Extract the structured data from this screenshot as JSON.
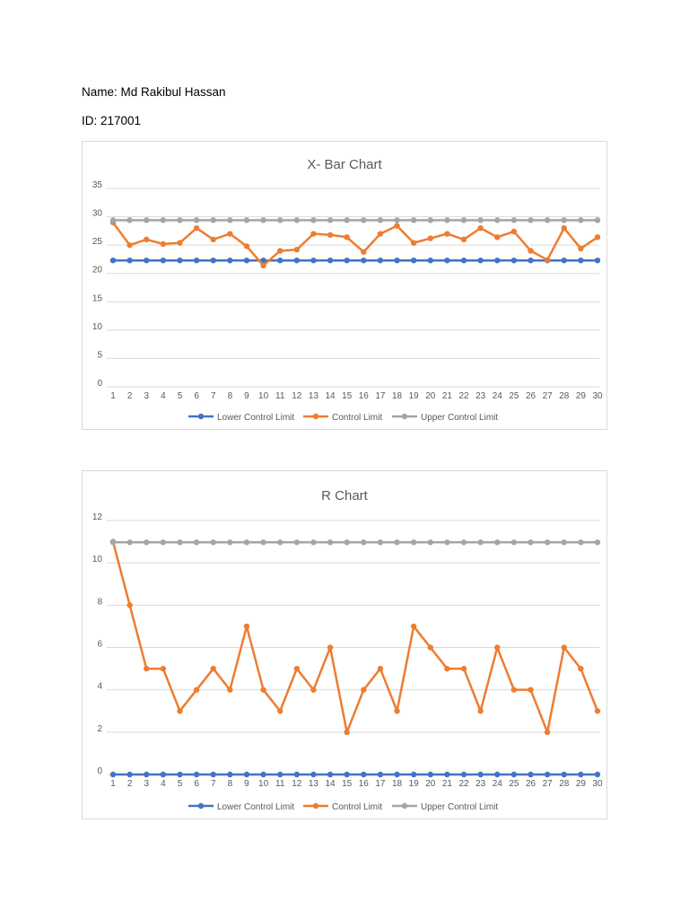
{
  "document": {
    "name_line": "Name: Md Rakibul Hassan",
    "id_line": "ID: 217001"
  },
  "colors": {
    "lower": "#4472c4",
    "control": "#ed7d31",
    "upper": "#a5a5a5",
    "grid": "#d9d9d9",
    "text": "#595959",
    "title": "#595959"
  },
  "chart_data": [
    {
      "type": "line",
      "title": "X- Bar Chart",
      "x": [
        1,
        2,
        3,
        4,
        5,
        6,
        7,
        8,
        9,
        10,
        11,
        12,
        13,
        14,
        15,
        16,
        17,
        18,
        19,
        20,
        21,
        22,
        23,
        24,
        25,
        26,
        27,
        28,
        29,
        30
      ],
      "ylim": [
        0,
        35
      ],
      "yticks": [
        0,
        5,
        10,
        15,
        20,
        25,
        30,
        35
      ],
      "grid": true,
      "legend": "bottom",
      "series": [
        {
          "name": "Lower Control Limit",
          "values": [
            22.3,
            22.3,
            22.3,
            22.3,
            22.3,
            22.3,
            22.3,
            22.3,
            22.3,
            22.3,
            22.3,
            22.3,
            22.3,
            22.3,
            22.3,
            22.3,
            22.3,
            22.3,
            22.3,
            22.3,
            22.3,
            22.3,
            22.3,
            22.3,
            22.3,
            22.3,
            22.3,
            22.3,
            22.3,
            22.3
          ]
        },
        {
          "name": "Control Limit",
          "values": [
            29,
            25,
            26,
            25.2,
            25.4,
            28,
            26,
            27,
            24.8,
            21.4,
            24,
            24.2,
            27,
            26.8,
            26.4,
            23.8,
            27,
            28.4,
            25.4,
            26.2,
            27,
            26,
            28,
            26.4,
            27.4,
            24,
            22.4,
            28,
            24.4,
            26.4
          ]
        },
        {
          "name": "Upper Control Limit",
          "values": [
            29.4,
            29.4,
            29.4,
            29.4,
            29.4,
            29.4,
            29.4,
            29.4,
            29.4,
            29.4,
            29.4,
            29.4,
            29.4,
            29.4,
            29.4,
            29.4,
            29.4,
            29.4,
            29.4,
            29.4,
            29.4,
            29.4,
            29.4,
            29.4,
            29.4,
            29.4,
            29.4,
            29.4,
            29.4,
            29.4
          ]
        }
      ]
    },
    {
      "type": "line",
      "title": "R Chart",
      "x": [
        1,
        2,
        3,
        4,
        5,
        6,
        7,
        8,
        9,
        10,
        11,
        12,
        13,
        14,
        15,
        16,
        17,
        18,
        19,
        20,
        21,
        22,
        23,
        24,
        25,
        26,
        27,
        28,
        29,
        30
      ],
      "ylim": [
        0,
        12
      ],
      "yticks": [
        0,
        2,
        4,
        6,
        8,
        10,
        12
      ],
      "grid": true,
      "legend": "bottom",
      "series": [
        {
          "name": "Lower Control Limit",
          "values": [
            0,
            0,
            0,
            0,
            0,
            0,
            0,
            0,
            0,
            0,
            0,
            0,
            0,
            0,
            0,
            0,
            0,
            0,
            0,
            0,
            0,
            0,
            0,
            0,
            0,
            0,
            0,
            0,
            0,
            0
          ]
        },
        {
          "name": "Control Limit",
          "values": [
            11,
            8,
            5,
            5,
            3,
            4,
            5,
            4,
            7,
            4,
            3,
            5,
            4,
            6,
            2,
            4,
            5,
            3,
            7,
            6,
            5,
            5,
            3,
            6,
            4,
            4,
            2,
            6,
            5,
            3
          ]
        },
        {
          "name": "Upper Control Limit",
          "values": [
            10.97,
            10.97,
            10.97,
            10.97,
            10.97,
            10.97,
            10.97,
            10.97,
            10.97,
            10.97,
            10.97,
            10.97,
            10.97,
            10.97,
            10.97,
            10.97,
            10.97,
            10.97,
            10.97,
            10.97,
            10.97,
            10.97,
            10.97,
            10.97,
            10.97,
            10.97,
            10.97,
            10.97,
            10.97,
            10.97
          ]
        }
      ]
    }
  ]
}
